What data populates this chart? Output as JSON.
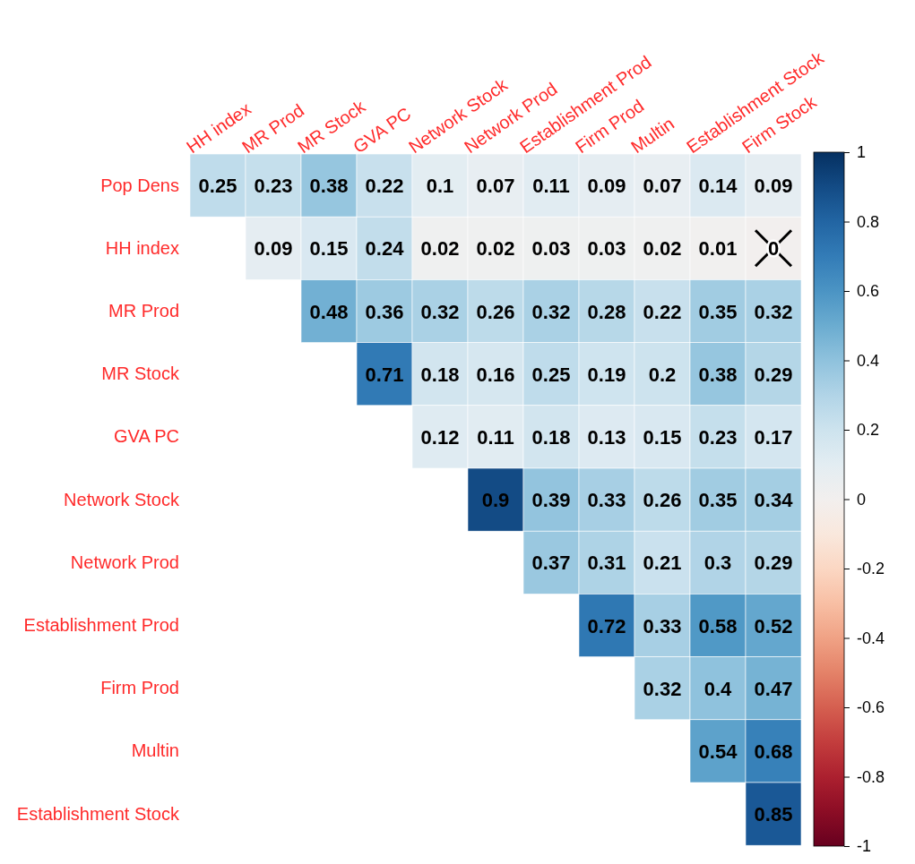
{
  "chart_data": {
    "type": "heatmap",
    "categories": [
      "HH index",
      "MR Prod",
      "MR Stock",
      "GVA PC",
      "Network Stock",
      "Network Prod",
      "Establishment Prod",
      "Firm Prod",
      "Multin",
      "Establishment Stock",
      "Firm Stock"
    ],
    "y_categories": [
      "Pop Dens",
      "HH index",
      "MR Prod",
      "MR Stock",
      "GVA PC",
      "Network Stock",
      "Network Prod",
      "Establishment Prod",
      "Firm Prod",
      "Multin",
      "Establishment Stock"
    ],
    "cells": [
      [
        0.25,
        0.23,
        0.38,
        0.22,
        0.1,
        0.07,
        0.11,
        0.09,
        0.07,
        0.14,
        0.09
      ],
      [
        null,
        0.09,
        0.15,
        0.24,
        0.02,
        0.02,
        0.03,
        0.03,
        0.02,
        0.01,
        0
      ],
      [
        null,
        null,
        0.48,
        0.36,
        0.32,
        0.26,
        0.32,
        0.28,
        0.22,
        0.35,
        0.32
      ],
      [
        null,
        null,
        null,
        0.71,
        0.18,
        0.16,
        0.25,
        0.19,
        0.2,
        0.38,
        0.29
      ],
      [
        null,
        null,
        null,
        null,
        0.12,
        0.11,
        0.18,
        0.13,
        0.15,
        0.23,
        0.17
      ],
      [
        null,
        null,
        null,
        null,
        null,
        0.9,
        0.39,
        0.33,
        0.26,
        0.35,
        0.34
      ],
      [
        null,
        null,
        null,
        null,
        null,
        null,
        0.37,
        0.31,
        0.21,
        0.3,
        0.29
      ],
      [
        null,
        null,
        null,
        null,
        null,
        null,
        null,
        0.72,
        0.33,
        0.58,
        0.52
      ],
      [
        null,
        null,
        null,
        null,
        null,
        null,
        null,
        null,
        0.32,
        0.4,
        0.47
      ],
      [
        null,
        null,
        null,
        null,
        null,
        null,
        null,
        null,
        null,
        0.54,
        0.68
      ],
      [
        null,
        null,
        null,
        null,
        null,
        null,
        null,
        null,
        null,
        null,
        0.85
      ]
    ],
    "data_labels": true,
    "clim": [
      -1,
      1
    ],
    "cticks": [
      -1,
      -0.8,
      -0.6,
      -0.4,
      -0.2,
      0,
      0.2,
      0.4,
      0.6,
      0.8,
      1
    ]
  }
}
